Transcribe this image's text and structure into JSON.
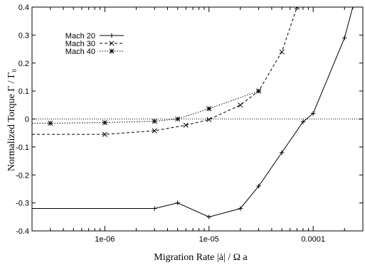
{
  "chart_data": {
    "type": "line",
    "xscale": "log",
    "xlim": [
      2e-07,
      0.0003
    ],
    "ylim": [
      -0.4,
      0.4
    ],
    "grid": false,
    "legend_position": "top-left",
    "xlabel": "Migration Rate  |ȧ| / Ω a",
    "ylabel": "Normalized Torque  Γ / Γ₀",
    "x_ticks": [
      {
        "value": 1e-06,
        "label": "1e-06"
      },
      {
        "value": 1e-05,
        "label": "1e-05"
      },
      {
        "value": 0.0001,
        "label": "0.0001"
      }
    ],
    "y_ticks": [
      {
        "value": -0.4,
        "label": "-0.4"
      },
      {
        "value": -0.3,
        "label": "-0.3"
      },
      {
        "value": -0.2,
        "label": "-0.2"
      },
      {
        "value": -0.1,
        "label": "-0.1"
      },
      {
        "value": 0,
        "label": "0"
      },
      {
        "value": 0.1,
        "label": "0.1"
      },
      {
        "value": 0.2,
        "label": "0.2"
      },
      {
        "value": 0.3,
        "label": "0.3"
      },
      {
        "value": 0.4,
        "label": "0.4"
      }
    ],
    "series": [
      {
        "name": "Mach 20",
        "line": "solid",
        "marker": "plus",
        "x": [
          2e-07,
          3e-06,
          5e-06,
          1e-05,
          2e-05,
          3e-05,
          5e-05,
          8e-05,
          0.0001,
          0.0002,
          0.00024
        ],
        "y": [
          -0.32,
          -0.32,
          -0.3,
          -0.35,
          -0.32,
          -0.24,
          -0.12,
          -0.01,
          0.02,
          0.29,
          0.4
        ]
      },
      {
        "name": "Mach 30",
        "line": "dashed",
        "marker": "x",
        "x": [
          2e-07,
          1e-06,
          3e-06,
          6e-06,
          1e-05,
          2e-05,
          3e-05,
          5e-05,
          7e-05
        ],
        "y": [
          -0.055,
          -0.055,
          -0.042,
          -0.022,
          -0.002,
          0.05,
          0.1,
          0.24,
          0.4
        ]
      },
      {
        "name": "Mach 40",
        "line": "dotted",
        "marker": "asterisk",
        "x": [
          2e-07,
          3e-07,
          1e-06,
          3e-06,
          5e-06,
          1e-05,
          3e-05
        ],
        "y": [
          -0.015,
          -0.015,
          -0.013,
          -0.008,
          0.0,
          0.037,
          0.1
        ]
      }
    ],
    "reference_line": {
      "y": 0,
      "style": "dotted"
    }
  }
}
